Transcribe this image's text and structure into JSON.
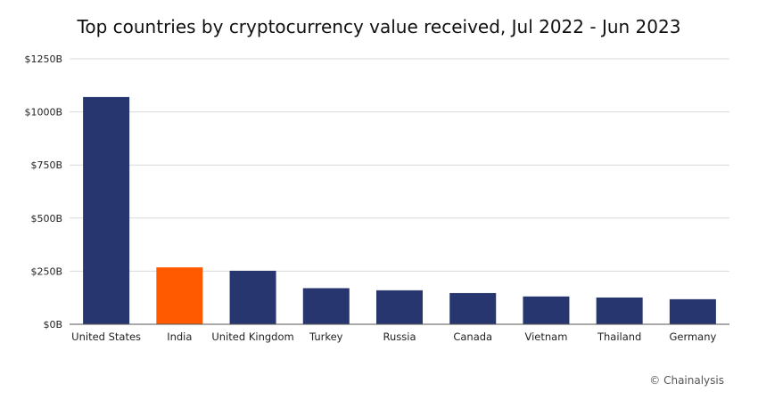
{
  "chart_data": {
    "type": "bar",
    "title": "Top countries by cryptocurrency value received, Jul 2022 - Jun 2023",
    "categories": [
      "United States",
      "India",
      "United Kingdom",
      "Turkey",
      "Russia",
      "Canada",
      "Vietnam",
      "Thailand",
      "Germany"
    ],
    "values": [
      1070,
      268,
      252,
      170,
      160,
      147,
      131,
      126,
      118
    ],
    "value_unit": "B",
    "ylim": [
      0,
      1250
    ],
    "yticks": [
      0,
      250,
      500,
      750,
      1000,
      1250
    ],
    "ytick_labels": [
      "$0B",
      "$250B",
      "$500B",
      "$750B",
      "$1000B",
      "$1250B"
    ],
    "xlabel": "",
    "ylabel": "",
    "grid": true,
    "colors": {
      "default": "#283670",
      "highlight": "#ff5a00"
    },
    "highlight_category": "India"
  },
  "source": "© Chainalysis"
}
